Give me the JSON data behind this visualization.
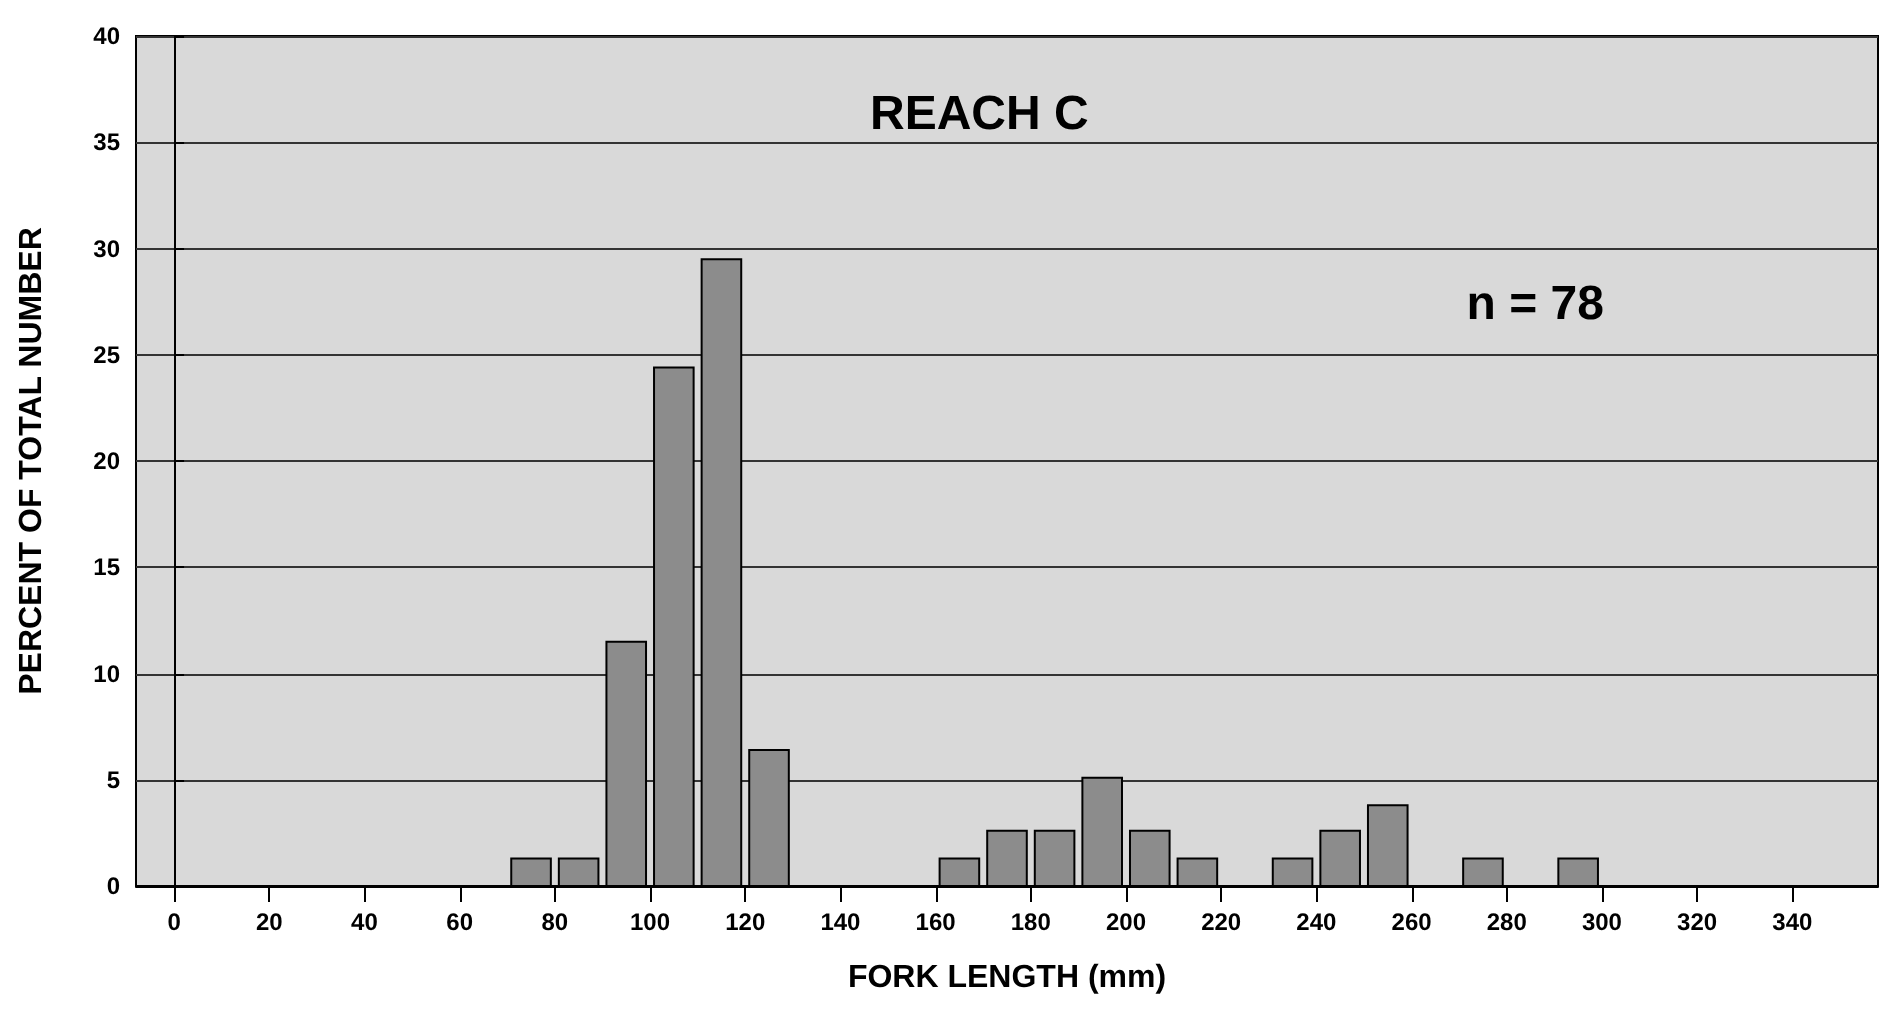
{
  "chart_data": {
    "type": "histogram",
    "title": "REACH C",
    "xlabel": "FORK LENGTH (mm)",
    "ylabel": "PERCENT OF TOTAL NUMBER",
    "annotations": [
      "n = 78"
    ],
    "bins": [
      70,
      80,
      90,
      100,
      110,
      120,
      130,
      140,
      150,
      160,
      170,
      180,
      190,
      200,
      210,
      220,
      230,
      240,
      250,
      260,
      270,
      280,
      290,
      300
    ],
    "values": [
      1.3,
      1.3,
      11.5,
      24.4,
      29.5,
      6.4,
      0,
      0,
      0,
      1.3,
      2.6,
      2.6,
      5.1,
      2.6,
      1.3,
      0,
      1.3,
      2.6,
      3.8,
      0,
      1.3,
      0,
      1.3
    ],
    "color": "#8c8c8c",
    "xlim": [
      -8,
      358
    ],
    "xticks": [
      0,
      20,
      40,
      60,
      80,
      100,
      120,
      140,
      160,
      180,
      200,
      220,
      240,
      260,
      280,
      300,
      320,
      340
    ],
    "ylim": [
      0,
      40
    ],
    "yticks": [
      0,
      5,
      10,
      15,
      20,
      25,
      30,
      35,
      40
    ],
    "grid": "y"
  }
}
